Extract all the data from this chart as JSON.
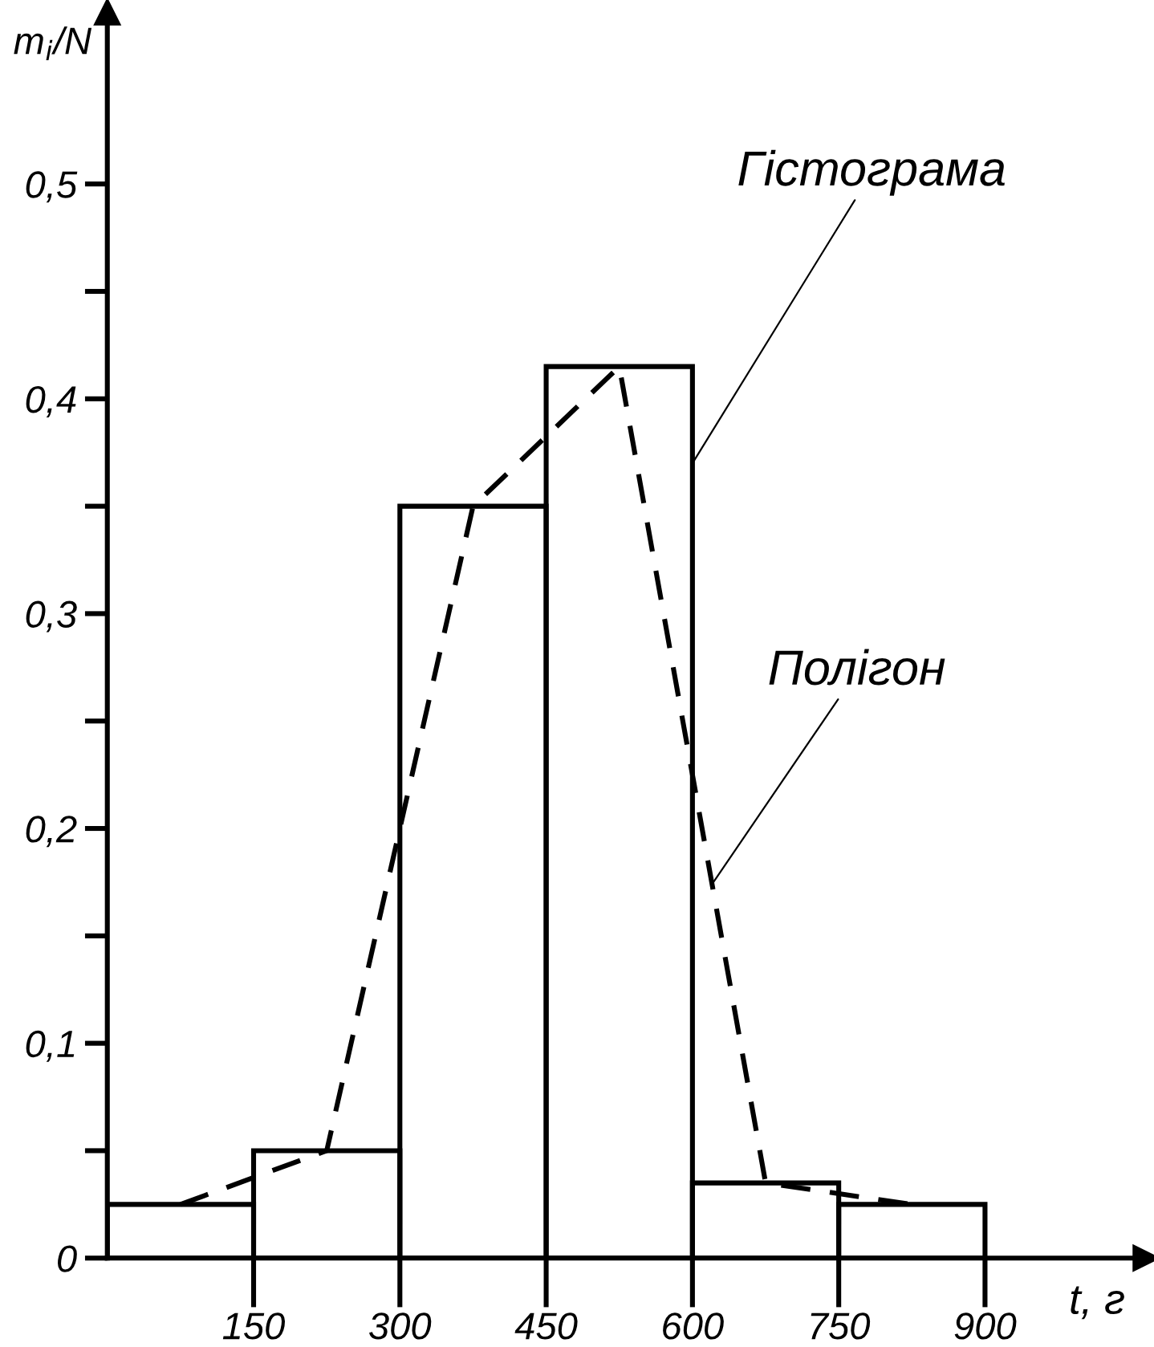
{
  "chart_data": {
    "type": "histogram",
    "xlabel": "t, г",
    "ylabel": "m$_{i}$/N",
    "bins": [
      0,
      150,
      300,
      450,
      600,
      750,
      900
    ],
    "series": [
      {
        "color": "#000000",
        "values": [
          0.025,
          0.05,
          0.35,
          0.415,
          0.035,
          0.025
        ]
      },
      {
        "type": "line",
        "color": "#000000",
        "line_style": "dashed",
        "marker": "none",
        "x": [
          75,
          225,
          375,
          525,
          675,
          825
        ],
        "values": [
          0.025,
          0.05,
          0.35,
          0.415,
          0.035,
          0.025
        ]
      }
    ],
    "annotations": [
      {
        "text": "Гістограма",
        "x": 600,
        "y": 0.37
      },
      {
        "text": "Полігон",
        "x": 620,
        "y": 0.174
      }
    ],
    "xlim": [
      0,
      1065
    ],
    "ylim": [
      0,
      0.58
    ],
    "xticks": [
      150,
      300,
      450,
      600,
      750,
      900
    ],
    "yticks": [
      {
        "value": 0,
        "label": "0"
      },
      {
        "value": 0.05,
        "label": null
      },
      {
        "value": 0.1,
        "label": "0,1"
      },
      {
        "value": 0.15,
        "label": null
      },
      {
        "value": 0.2,
        "label": "0,2"
      },
      {
        "value": 0.25,
        "label": null
      },
      {
        "value": 0.3,
        "label": "0,3"
      },
      {
        "value": 0.35,
        "label": null
      },
      {
        "value": 0.4,
        "label": "0,4"
      },
      {
        "value": 0.45,
        "label": null
      },
      {
        "value": 0.5,
        "label": "0,5"
      }
    ],
    "grid": false,
    "legend": false
  }
}
